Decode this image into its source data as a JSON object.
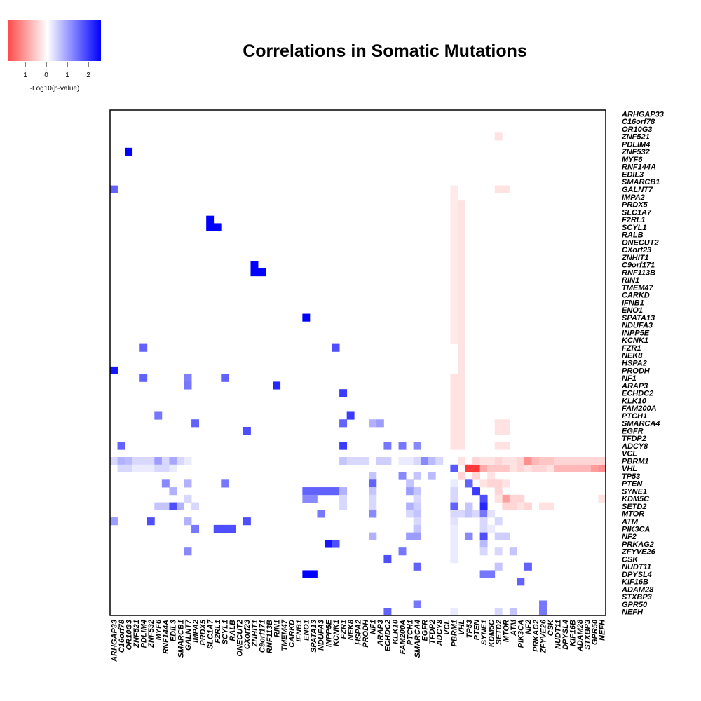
{
  "chart_data": {
    "type": "heatmap",
    "title": "Correlations in Somatic Mutations",
    "legend": {
      "label": "-Log10(p-value)",
      "ticks": [
        "1",
        "0",
        "1",
        "2"
      ],
      "placement": "top-left",
      "colors": {
        "negative": "#ff0000",
        "zero": "#ffffff",
        "positive": "#0000ff"
      },
      "range": [
        -1.8,
        2.6
      ]
    },
    "genes": [
      "ARHGAP33",
      "C16orf78",
      "OR10G3",
      "ZNF521",
      "PDLIM4",
      "ZNF532",
      "MYF6",
      "RNF144A",
      "EDIL3",
      "SMARCB1",
      "GALNT7",
      "IMPA2",
      "PRDX5",
      "SLC1A7",
      "F2RL1",
      "SCYL1",
      "RALB",
      "ONECUT2",
      "CXorf23",
      "ZNHIT1",
      "C9orf171",
      "RNF113B",
      "RIN1",
      "TMEM47",
      "CARKD",
      "IFNB1",
      "ENO1",
      "SPATA13",
      "NDUFA3",
      "INPP5E",
      "KCNK1",
      "FZR1",
      "NEK8",
      "HSPA2",
      "PRODH",
      "NF1",
      "ARAP3",
      "ECHDC2",
      "KLK10",
      "FAM200A",
      "PTCH1",
      "SMARCA4",
      "EGFR",
      "TFDP2",
      "ADCY8",
      "VCL",
      "PBRM1",
      "VHL",
      "TP53",
      "PTEN",
      "SYNE1",
      "KDM5C",
      "SETD2",
      "MTOR",
      "ATM",
      "PIK3CA",
      "NF2",
      "PRKAG2",
      "ZFYVE26",
      "CSK",
      "NUDT11",
      "DPYSL4",
      "KIF16B",
      "ADAM28",
      "STXBP3",
      "GPR50",
      "NEFH"
    ],
    "cells": [
      [
        "ZNF532",
        "OR10G3",
        2.6
      ],
      [
        "F2RL1",
        "SLC1A7",
        2.6
      ],
      [
        "SCYL1",
        "SLC1A7",
        2.6
      ],
      [
        "SCYL1",
        "F2RL1",
        2.6
      ],
      [
        "C9orf171",
        "ZNHIT1",
        2.6
      ],
      [
        "RNF113B",
        "ZNHIT1",
        2.6
      ],
      [
        "RNF113B",
        "C9orf171",
        2.6
      ],
      [
        "SPATA13",
        "ENO1",
        2.6
      ],
      [
        "DPYSL4",
        "ENO1",
        2.6
      ],
      [
        "DPYSL4",
        "SPATA13",
        2.6
      ],
      [
        "PRODH",
        "ARHGAP33",
        2.4
      ],
      [
        "GALNT7",
        "ARHGAP33",
        1.6
      ],
      [
        "FZR1",
        "PDLIM4",
        1.6
      ],
      [
        "FZR1",
        "KCNK1",
        1.8
      ],
      [
        "NF1",
        "PDLIM4",
        1.6
      ],
      [
        "NF1",
        "GALNT7",
        1.3
      ],
      [
        "NF1",
        "SCYL1",
        1.6
      ],
      [
        "ARAP3",
        "GALNT7",
        1.4
      ],
      [
        "ARAP3",
        "RIN1",
        2.2
      ],
      [
        "ECHDC2",
        "FZR1",
        2.0
      ],
      [
        "PTCH1",
        "MYF6",
        1.4
      ],
      [
        "PTCH1",
        "NEK8",
        2.0
      ],
      [
        "SMARCA4",
        "IMPA2",
        1.6
      ],
      [
        "SMARCA4",
        "FZR1",
        1.6
      ],
      [
        "SMARCA4",
        "NF1",
        0.8
      ],
      [
        "SMARCA4",
        "ARAP3",
        1.0
      ],
      [
        "EGFR",
        "CXorf23",
        1.8
      ],
      [
        "ADCY8",
        "C16orf78",
        1.6
      ],
      [
        "ADCY8",
        "FZR1",
        2.0
      ],
      [
        "ADCY8",
        "ECHDC2",
        1.4
      ],
      [
        "ADCY8",
        "FAM200A",
        1.4
      ],
      [
        "ADCY8",
        "SMARCA4",
        1.2
      ],
      [
        "PBRM1",
        "ARHGAP33",
        0.4
      ],
      [
        "PBRM1",
        "C16orf78",
        0.8
      ],
      [
        "PBRM1",
        "OR10G3",
        0.7
      ],
      [
        "PBRM1",
        "ZNF521",
        0.4
      ],
      [
        "PBRM1",
        "PDLIM4",
        0.4
      ],
      [
        "PBRM1",
        "ZNF532",
        0.4
      ],
      [
        "PBRM1",
        "MYF6",
        1.0
      ],
      [
        "PBRM1",
        "RNF144A",
        0.4
      ],
      [
        "PBRM1",
        "EDIL3",
        0.9
      ],
      [
        "PBRM1",
        "SMARCB1",
        0.4
      ],
      [
        "PBRM1",
        "GALNT7",
        0.2
      ],
      [
        "PBRM1",
        "FZR1",
        0.6
      ],
      [
        "PBRM1",
        "NEK8",
        0.4
      ],
      [
        "PBRM1",
        "HSPA2",
        0.4
      ],
      [
        "PBRM1",
        "PRODH",
        0.4
      ],
      [
        "PBRM1",
        "ARAP3",
        0.5
      ],
      [
        "PBRM1",
        "ECHDC2",
        0.5
      ],
      [
        "PBRM1",
        "FAM200A",
        0.2
      ],
      [
        "PBRM1",
        "PTCH1",
        0.2
      ],
      [
        "PBRM1",
        "SMARCA4",
        0.4
      ],
      [
        "PBRM1",
        "EGFR",
        1.2
      ],
      [
        "PBRM1",
        "TFDP2",
        0.7
      ],
      [
        "PBRM1",
        "ADCY8",
        0.4
      ],
      [
        "VHL",
        "C16orf78",
        0.4
      ],
      [
        "VHL",
        "OR10G3",
        0.4
      ],
      [
        "VHL",
        "ZNF521",
        0.2
      ],
      [
        "VHL",
        "PDLIM4",
        0.2
      ],
      [
        "VHL",
        "ZNF532",
        0.2
      ],
      [
        "VHL",
        "MYF6",
        0.4
      ],
      [
        "VHL",
        "RNF144A",
        0.4
      ],
      [
        "VHL",
        "EDIL3",
        0.2
      ],
      [
        "VHL",
        "PBRM1",
        1.7
      ],
      [
        "TP53",
        "NF1",
        0.6
      ],
      [
        "TP53",
        "FAM200A",
        1.2
      ],
      [
        "TP53",
        "SMARCA4",
        0.6
      ],
      [
        "TP53",
        "TFDP2",
        0.7
      ],
      [
        "PTEN",
        "RNF144A",
        1.2
      ],
      [
        "PTEN",
        "GALNT7",
        0.8
      ],
      [
        "PTEN",
        "SCYL1",
        1.4
      ],
      [
        "PTEN",
        "NF1",
        1.6
      ],
      [
        "PTEN",
        "PTCH1",
        0.6
      ],
      [
        "PTEN",
        "PBRM1",
        0.2
      ],
      [
        "PTEN",
        "TP53",
        1.6
      ],
      [
        "SYNE1",
        "EDIL3",
        0.8
      ],
      [
        "SYNE1",
        "ENO1",
        1.6
      ],
      [
        "SYNE1",
        "SPATA13",
        1.6
      ],
      [
        "SYNE1",
        "NDUFA3",
        1.6
      ],
      [
        "SYNE1",
        "INPP5E",
        1.6
      ],
      [
        "SYNE1",
        "KCNK1",
        1.6
      ],
      [
        "SYNE1",
        "FZR1",
        0.8
      ],
      [
        "SYNE1",
        "NF1",
        0.6
      ],
      [
        "SYNE1",
        "PTCH1",
        1.0
      ],
      [
        "SYNE1",
        "SMARCA4",
        0.6
      ],
      [
        "SYNE1",
        "PBRM1",
        0.4
      ],
      [
        "SYNE1",
        "PTEN",
        2.0
      ],
      [
        "KDM5C",
        "GALNT7",
        0.4
      ],
      [
        "KDM5C",
        "ENO1",
        1.2
      ],
      [
        "KDM5C",
        "SPATA13",
        1.2
      ],
      [
        "KDM5C",
        "FZR1",
        0.4
      ],
      [
        "KDM5C",
        "NF1",
        0.4
      ],
      [
        "KDM5C",
        "SMARCA4",
        0.4
      ],
      [
        "KDM5C",
        "PBRM1",
        0.4
      ],
      [
        "KDM5C",
        "SYNE1",
        1.8
      ],
      [
        "SETD2",
        "MYF6",
        0.6
      ],
      [
        "SETD2",
        "RNF144A",
        0.6
      ],
      [
        "SETD2",
        "EDIL3",
        1.8
      ],
      [
        "SETD2",
        "SMARCB1",
        0.8
      ],
      [
        "SETD2",
        "IMPA2",
        0.4
      ],
      [
        "SETD2",
        "FZR1",
        0.4
      ],
      [
        "SETD2",
        "NF1",
        0.4
      ],
      [
        "SETD2",
        "PTCH1",
        0.8
      ],
      [
        "SETD2",
        "SMARCA4",
        0.5
      ],
      [
        "SETD2",
        "PBRM1",
        1.6
      ],
      [
        "SETD2",
        "TP53",
        0.6
      ],
      [
        "SETD2",
        "SYNE1",
        2.2
      ],
      [
        "MTOR",
        "NDUFA3",
        1.4
      ],
      [
        "MTOR",
        "NF1",
        1.2
      ],
      [
        "MTOR",
        "PTCH1",
        0.4
      ],
      [
        "MTOR",
        "SMARCA4",
        0.6
      ],
      [
        "MTOR",
        "PBRM1",
        0.4
      ],
      [
        "MTOR",
        "VHL",
        0.4
      ],
      [
        "MTOR",
        "TP53",
        0.6
      ],
      [
        "MTOR",
        "PTEN",
        0.4
      ],
      [
        "MTOR",
        "SYNE1",
        1.4
      ],
      [
        "MTOR",
        "KDM5C",
        0.3
      ],
      [
        "ATM",
        "ARHGAP33",
        1.0
      ],
      [
        "ATM",
        "ZNF532",
        1.8
      ],
      [
        "ATM",
        "GALNT7",
        0.8
      ],
      [
        "ATM",
        "CXorf23",
        1.8
      ],
      [
        "ATM",
        "SMARCA4",
        0.4
      ],
      [
        "ATM",
        "PBRM1",
        0.3
      ],
      [
        "ATM",
        "SYNE1",
        0.4
      ],
      [
        "ATM",
        "SETD2",
        0.4
      ],
      [
        "PIK3CA",
        "IMPA2",
        1.4
      ],
      [
        "PIK3CA",
        "F2RL1",
        1.8
      ],
      [
        "PIK3CA",
        "SCYL1",
        1.8
      ],
      [
        "PIK3CA",
        "RALB",
        1.8
      ],
      [
        "PIK3CA",
        "SMARCA4",
        0.6
      ],
      [
        "PIK3CA",
        "PBRM1",
        0.2
      ],
      [
        "PIK3CA",
        "SYNE1",
        0.4
      ],
      [
        "PIK3CA",
        "KDM5C",
        0.2
      ],
      [
        "NF2",
        "NF1",
        0.8
      ],
      [
        "NF2",
        "PTCH1",
        1.0
      ],
      [
        "NF2",
        "SMARCA4",
        1.0
      ],
      [
        "NF2",
        "PBRM1",
        0.2
      ],
      [
        "NF2",
        "TP53",
        1.2
      ],
      [
        "NF2",
        "SYNE1",
        1.8
      ],
      [
        "NF2",
        "SETD2",
        0.5
      ],
      [
        "NF2",
        "MTOR",
        0.5
      ],
      [
        "PRKAG2",
        "INPP5E",
        2.4
      ],
      [
        "PRKAG2",
        "KCNK1",
        1.8
      ],
      [
        "PRKAG2",
        "PBRM1",
        0.2
      ],
      [
        "PRKAG2",
        "SYNE1",
        0.7
      ],
      [
        "ZFYVE26",
        "GALNT7",
        1.2
      ],
      [
        "ZFYVE26",
        "FAM200A",
        1.4
      ],
      [
        "ZFYVE26",
        "PBRM1",
        0.2
      ],
      [
        "ZFYVE26",
        "SYNE1",
        0.4
      ],
      [
        "ZFYVE26",
        "SETD2",
        0.4
      ],
      [
        "ZFYVE26",
        "ATM",
        0.6
      ],
      [
        "CSK",
        "ECHDC2",
        1.8
      ],
      [
        "CSK",
        "PBRM1",
        0.2
      ],
      [
        "NUDT11",
        "SMARCA4",
        1.6
      ],
      [
        "NUDT11",
        "SETD2",
        0.6
      ],
      [
        "NUDT11",
        "NF2",
        1.6
      ],
      [
        "DPYSL4",
        "SYNE1",
        1.4
      ],
      [
        "DPYSL4",
        "KDM5C",
        1.4
      ],
      [
        "KIF16B",
        "PIK3CA",
        1.6
      ],
      [
        "GPR50",
        "SMARCA4",
        1.4
      ],
      [
        "GPR50",
        "ZFYVE26",
        1.4
      ],
      [
        "NEFH",
        "ECHDC2",
        1.6
      ],
      [
        "NEFH",
        "PBRM1",
        0.2
      ],
      [
        "NEFH",
        "SETD2",
        0.4
      ],
      [
        "NEFH",
        "ATM",
        0.6
      ],
      [
        "NEFH",
        "ZFYVE26",
        1.4
      ],
      [
        "PBRM1",
        "VHL",
        -0.2
      ],
      [
        "TP53",
        "VHL",
        -0.3
      ],
      [
        "VHL",
        "TP53",
        -1.4
      ],
      [
        "VHL",
        "PTEN",
        -1.4
      ],
      [
        "VHL",
        "SYNE1",
        -0.6
      ],
      [
        "VHL",
        "KDM5C",
        -0.4
      ],
      [
        "VHL",
        "SETD2",
        -0.4
      ],
      [
        "VHL",
        "MTOR",
        -0.4
      ],
      [
        "VHL",
        "ATM",
        -0.2
      ],
      [
        "VHL",
        "PIK3CA",
        -0.3
      ],
      [
        "VHL",
        "NF2",
        -0.2
      ],
      [
        "VHL",
        "PRKAG2",
        -0.3
      ],
      [
        "VHL",
        "ZFYVE26",
        -0.3
      ],
      [
        "VHL",
        "CSK",
        -0.2
      ],
      [
        "VHL",
        "NUDT11",
        -0.5
      ],
      [
        "VHL",
        "DPYSL4",
        -0.5
      ],
      [
        "VHL",
        "KIF16B",
        -0.5
      ],
      [
        "VHL",
        "ADAM28",
        -0.5
      ],
      [
        "VHL",
        "STXBP3",
        -0.5
      ],
      [
        "VHL",
        "GPR50",
        -0.7
      ],
      [
        "VHL",
        "NEFH",
        -0.8
      ],
      [
        "PBRM1",
        "PTEN",
        -0.3
      ],
      [
        "PBRM1",
        "SYNE1",
        -0.2
      ],
      [
        "PBRM1",
        "KDM5C",
        -0.2
      ],
      [
        "PBRM1",
        "SETD2",
        -0.3
      ],
      [
        "PBRM1",
        "MTOR",
        -0.2
      ],
      [
        "PBRM1",
        "ATM",
        -0.2
      ],
      [
        "PBRM1",
        "PIK3CA",
        -0.3
      ],
      [
        "PBRM1",
        "NF2",
        -0.8
      ],
      [
        "PBRM1",
        "PRKAG2",
        -0.5
      ],
      [
        "PBRM1",
        "ZFYVE26",
        -0.4
      ],
      [
        "PBRM1",
        "CSK",
        -0.4
      ],
      [
        "PBRM1",
        "NUDT11",
        -0.3
      ],
      [
        "PBRM1",
        "DPYSL4",
        -0.3
      ],
      [
        "PBRM1",
        "KIF16B",
        -0.3
      ],
      [
        "PBRM1",
        "ADAM28",
        -0.3
      ],
      [
        "PBRM1",
        "STXBP3",
        -0.3
      ],
      [
        "PBRM1",
        "GPR50",
        -0.3
      ],
      [
        "PBRM1",
        "NEFH",
        -0.3
      ],
      [
        "TP53",
        "PTEN",
        -0.3
      ],
      [
        "TP53",
        "KDM5C",
        -0.2
      ],
      [
        "PTEN",
        "SYNE1",
        -0.2
      ],
      [
        "PTEN",
        "KDM5C",
        -0.3
      ],
      [
        "PTEN",
        "SETD2",
        -0.3
      ],
      [
        "PTEN",
        "MTOR",
        -0.2
      ],
      [
        "SYNE1",
        "SETD2",
        -0.3
      ],
      [
        "KDM5C",
        "MTOR",
        -0.7
      ],
      [
        "KDM5C",
        "SETD2",
        -0.2
      ],
      [
        "KDM5C",
        "ATM",
        -0.3
      ],
      [
        "KDM5C",
        "PIK3CA",
        -0.3
      ],
      [
        "KDM5C",
        "NEFH",
        -0.2
      ],
      [
        "SETD2",
        "MTOR",
        -0.3
      ],
      [
        "SETD2",
        "ATM",
        -0.3
      ],
      [
        "SETD2",
        "PIK3CA",
        -0.2
      ],
      [
        "SETD2",
        "NF2",
        -0.3
      ],
      [
        "SETD2",
        "ZFYVE26",
        -0.2
      ],
      [
        "SETD2",
        "CSK",
        -0.2
      ],
      [
        "ZNF521",
        "SETD2",
        -0.2
      ],
      [
        "GALNT7",
        "SETD2",
        -0.2
      ],
      [
        "GALNT7",
        "MTOR",
        -0.2
      ],
      [
        "SMARCA4",
        "SETD2",
        -0.2
      ],
      [
        "SMARCA4",
        "MTOR",
        -0.2
      ],
      [
        "EGFR",
        "SETD2",
        -0.2
      ],
      [
        "EGFR",
        "MTOR",
        -0.2
      ],
      [
        "ADCY8",
        "SETD2",
        -0.2
      ],
      [
        "ADCY8",
        "MTOR",
        -0.2
      ]
    ],
    "column_bands": [
      [
        "PBRM1",
        "GALNT7",
        "KCNK1",
        -0.15
      ],
      [
        "PBRM1",
        "NF1",
        "ADCY8",
        -0.2
      ],
      [
        "VHL",
        "PRDX5",
        "ADCY8",
        -0.2
      ]
    ]
  }
}
